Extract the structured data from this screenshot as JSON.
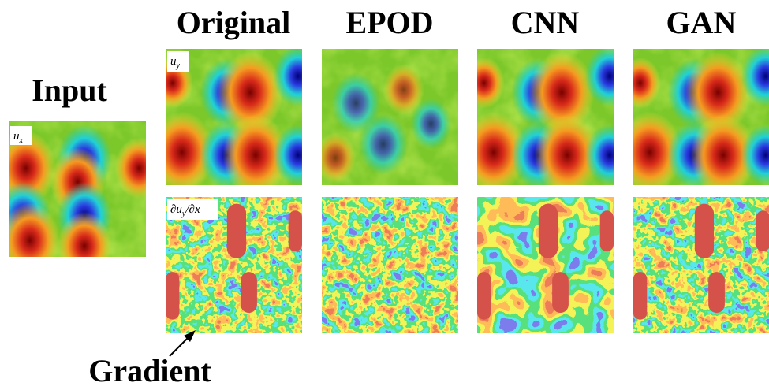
{
  "title_input": "Input",
  "columns": [
    "Original",
    "EPOD",
    "CNN",
    "GAN"
  ],
  "annotation": "Gradient",
  "input_label": {
    "main": "u",
    "sub": "x"
  },
  "row_labels": [
    {
      "main": "u",
      "sub": "y"
    },
    {
      "main": "∂u",
      "sub": "y",
      "rest": "/∂x"
    }
  ]
}
